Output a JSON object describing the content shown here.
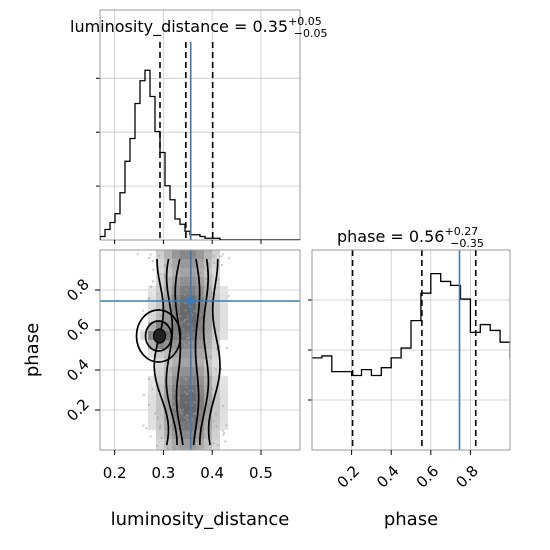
{
  "chart_data": [
    {
      "type": "histogram",
      "panel": "luminosity_distance-marginal",
      "title": {
        "lead": "luminosity_distance = ",
        "value": "0.35",
        "plus": "+0.05",
        "minus": "−0.05"
      },
      "xlim": [
        0.17,
        0.58
      ],
      "bins": {
        "start": 0.17,
        "width": 0.01025,
        "heights": [
          0.02,
          0.06,
          0.1,
          0.15,
          0.27,
          0.45,
          0.58,
          0.78,
          0.91,
          0.97,
          0.82,
          0.62,
          0.5,
          0.31,
          0.23,
          0.12,
          0.09,
          0.05,
          0.03,
          0.03,
          0.02,
          0.01,
          0.01,
          0.01,
          0.0,
          0.0,
          0.0,
          0.0,
          0.0,
          0.0,
          0.0,
          0.0,
          0.0,
          0.0,
          0.0,
          0.0,
          0.0,
          0.0,
          0.0,
          0.0
        ]
      },
      "quantiles": [
        0.293,
        0.346,
        0.401
      ],
      "truth": 0.356,
      "xticks": [
        0.2,
        0.3,
        0.4,
        0.5
      ],
      "grid": true
    },
    {
      "type": "histogram",
      "panel": "phase-marginal",
      "title": {
        "lead": "phase = ",
        "value": "0.56",
        "plus": "+0.27",
        "minus": "−0.35"
      },
      "xlim": [
        0.0,
        1.0
      ],
      "bins": {
        "start": 0.0,
        "width": 0.05,
        "heights": [
          0.47,
          0.48,
          0.4,
          0.4,
          0.38,
          0.41,
          0.38,
          0.42,
          0.47,
          0.52,
          0.66,
          0.8,
          0.9,
          0.86,
          0.84,
          0.77,
          0.6,
          0.64,
          0.61,
          0.55,
          0.47
        ]
      },
      "quantiles": [
        0.205,
        0.555,
        0.827
      ],
      "truth": 0.745,
      "xticks": [
        0.2,
        0.4,
        0.6,
        0.8
      ],
      "xtick_labels": [
        "0.2",
        "0.4",
        "0.6",
        "0.8"
      ],
      "xlabel": "phase",
      "grid": true
    },
    {
      "type": "2d-histogram-contour",
      "panel": "luminosity_distance-vs-phase",
      "xlim": [
        0.17,
        0.58
      ],
      "ylim": [
        0.0,
        1.0
      ],
      "xticks": [
        0.2,
        0.3,
        0.4,
        0.5
      ],
      "xtick_labels": [
        "0.2",
        "0.3",
        "0.4",
        "0.5"
      ],
      "yticks": [
        0.2,
        0.4,
        0.6,
        0.8
      ],
      "ytick_labels": [
        "0.2",
        "0.4",
        "0.6",
        "0.8"
      ],
      "xlabel": "luminosity_distance",
      "ylabel": "phase",
      "truth": {
        "x": 0.356,
        "y": 0.745
      },
      "density": {
        "x_center": 0.35,
        "x_sigma": 0.04,
        "extra_blob": {
          "x": 0.29,
          "y": 0.57
        }
      },
      "grid": true
    }
  ],
  "colors": {
    "truth": "#3a7ab8",
    "hist": "#000000",
    "grid": "#c8c8c8",
    "frame": "#999999"
  }
}
